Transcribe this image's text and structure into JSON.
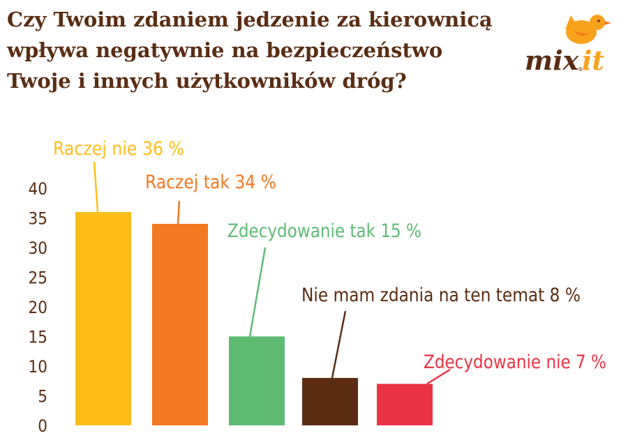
{
  "title_lines": [
    "Czy Twoim zdaniem jedzenie za kierownicą",
    "wpływa negatywnie na bezpieczeństwo",
    "Twoje i innych użytkowników dróg?"
  ],
  "logo": {
    "text_prefix": "mix",
    "text_suffix": "it",
    "mark": "®"
  },
  "chart_data": {
    "type": "bar",
    "title": "Czy Twoim zdaniem jedzenie za kierownicą wpływa negatywnie na bezpieczeństwo Twoje i innych użytkowników dróg?",
    "categories": [
      "Raczej nie",
      "Raczej tak",
      "Zdecydowanie tak",
      "Nie mam zdania na ten temat",
      "Zdecydowanie nie"
    ],
    "values": [
      36,
      34,
      15,
      8,
      7
    ],
    "data_labels": [
      "Raczej nie 36 %",
      "Raczej tak 34 %",
      "Zdecydowanie tak 15 %",
      "Nie mam zdania na ten temat 8 %",
      "Zdecydowanie nie 7 %"
    ],
    "colors": [
      "#fdbe1a",
      "#f47721",
      "#5dbb74",
      "#5a2d12",
      "#ea3345"
    ],
    "ylim": [
      0,
      40
    ],
    "yticks": [
      0,
      5,
      10,
      15,
      20,
      25,
      30,
      35,
      40
    ],
    "grid": false,
    "xlabel": "",
    "ylabel": ""
  }
}
